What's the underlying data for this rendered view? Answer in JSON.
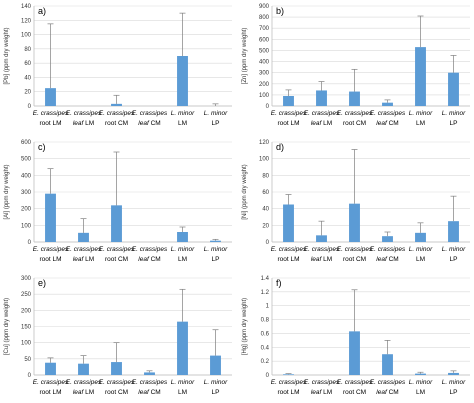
{
  "categories": [
    {
      "species": "E. crassipes",
      "tissue": "root",
      "site": "LM"
    },
    {
      "species": "E. crassipes",
      "tissue": "leaf",
      "site": "LM"
    },
    {
      "species": "E. crassipes",
      "tissue": "root",
      "site": "CM"
    },
    {
      "species": "E. crassipes",
      "tissue": "leaf",
      "site": "CM"
    },
    {
      "species": "L. minor",
      "tissue": "",
      "site": "LM"
    },
    {
      "species": "L. minor",
      "tissue": "",
      "site": "LP"
    }
  ],
  "chart_data": [
    {
      "type": "bar",
      "panel": "a)",
      "ylabel": "[Pb] (ppm dry weight)",
      "ylim": [
        0,
        140
      ],
      "yticks": [
        0,
        20,
        40,
        60,
        80,
        100,
        120,
        140
      ],
      "grid": true,
      "values": [
        25,
        0,
        3,
        0,
        70,
        0
      ],
      "errors": [
        90,
        0,
        12,
        0,
        60,
        3
      ]
    },
    {
      "type": "bar",
      "panel": "b)",
      "ylabel": "[Zn] (ppm dry weight)",
      "ylim": [
        0,
        900
      ],
      "yticks": [
        0,
        100,
        200,
        300,
        400,
        500,
        600,
        700,
        800,
        900
      ],
      "grid": true,
      "values": [
        90,
        140,
        130,
        30,
        530,
        300
      ],
      "errors": [
        55,
        80,
        200,
        25,
        280,
        155
      ]
    },
    {
      "type": "bar",
      "panel": "c)",
      "ylabel": "[Al] (ppm dry weight)",
      "ylim": [
        0,
        600
      ],
      "yticks": [
        0,
        100,
        200,
        300,
        400,
        500,
        600
      ],
      "grid": true,
      "values": [
        290,
        55,
        220,
        0,
        60,
        8
      ],
      "errors": [
        150,
        85,
        320,
        0,
        30,
        8
      ]
    },
    {
      "type": "bar",
      "panel": "d)",
      "ylabel": "[Ni] (ppm dry weight)",
      "ylim": [
        0,
        120
      ],
      "yticks": [
        0,
        20,
        40,
        60,
        80,
        100,
        120
      ],
      "grid": true,
      "values": [
        45,
        8,
        46,
        7,
        11,
        25
      ],
      "errors": [
        12,
        17,
        65,
        5,
        12,
        30
      ]
    },
    {
      "type": "bar",
      "panel": "e)",
      "ylabel": "[Cu] (ppm dry weight)",
      "ylim": [
        0,
        300
      ],
      "yticks": [
        0,
        50,
        100,
        150,
        200,
        250,
        300
      ],
      "grid": true,
      "values": [
        38,
        35,
        40,
        8,
        165,
        60
      ],
      "errors": [
        15,
        25,
        60,
        5,
        100,
        80
      ]
    },
    {
      "type": "bar",
      "panel": "f)",
      "ylabel": "[Hg] (ppm dry weight)",
      "ylim": [
        0,
        1.4
      ],
      "yticks": [
        "0",
        "0.2",
        "0.4",
        "0.6",
        "0.8",
        "1",
        "1.2",
        "1.4"
      ],
      "grid": true,
      "values": [
        0.01,
        0,
        0.63,
        0.3,
        0.02,
        0.03
      ],
      "errors": [
        0.01,
        0,
        0.6,
        0.2,
        0.02,
        0.03
      ]
    }
  ]
}
